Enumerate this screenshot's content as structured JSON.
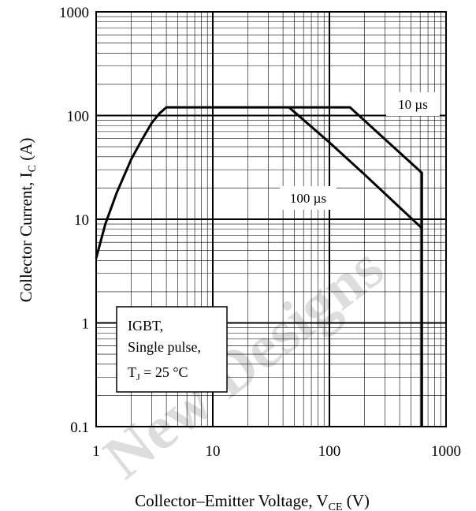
{
  "chart_data": {
    "type": "line",
    "xlabel": {
      "main": "Collector–Emitter Voltage, V",
      "sub": "CE",
      "unit": " (V)"
    },
    "ylabel": {
      "main": "Collector Current, I",
      "sub": "C",
      "unit": " (A)"
    },
    "xscale": "log",
    "yscale": "log",
    "xlim": [
      1,
      1000
    ],
    "ylim": [
      0.1,
      1000
    ],
    "x_ticks": [
      "1",
      "10",
      "100",
      "1000"
    ],
    "y_ticks": [
      "0.1",
      "1",
      "10",
      "100",
      "1000"
    ],
    "grid": true,
    "series": [
      {
        "name": "10 µs",
        "x": [
          1,
          1.2,
          1.5,
          2,
          2.5,
          3,
          3.5,
          4,
          10,
          50,
          150,
          620,
          620
        ],
        "y": [
          4.2,
          9,
          18,
          38,
          60,
          85,
          105,
          120,
          120,
          120,
          120,
          28,
          0.1
        ]
      },
      {
        "name": "100 µs",
        "x": [
          45,
          100,
          200,
          400,
          620
        ],
        "y": [
          120,
          55,
          27,
          13,
          8.2
        ]
      }
    ],
    "annotation_box": {
      "lines": [
        "IGBT,",
        "Single pulse,"
      ],
      "tj": {
        "main": "T",
        "sub": "J",
        "rest": " = 25 °C"
      }
    },
    "watermark": "New Designs"
  }
}
